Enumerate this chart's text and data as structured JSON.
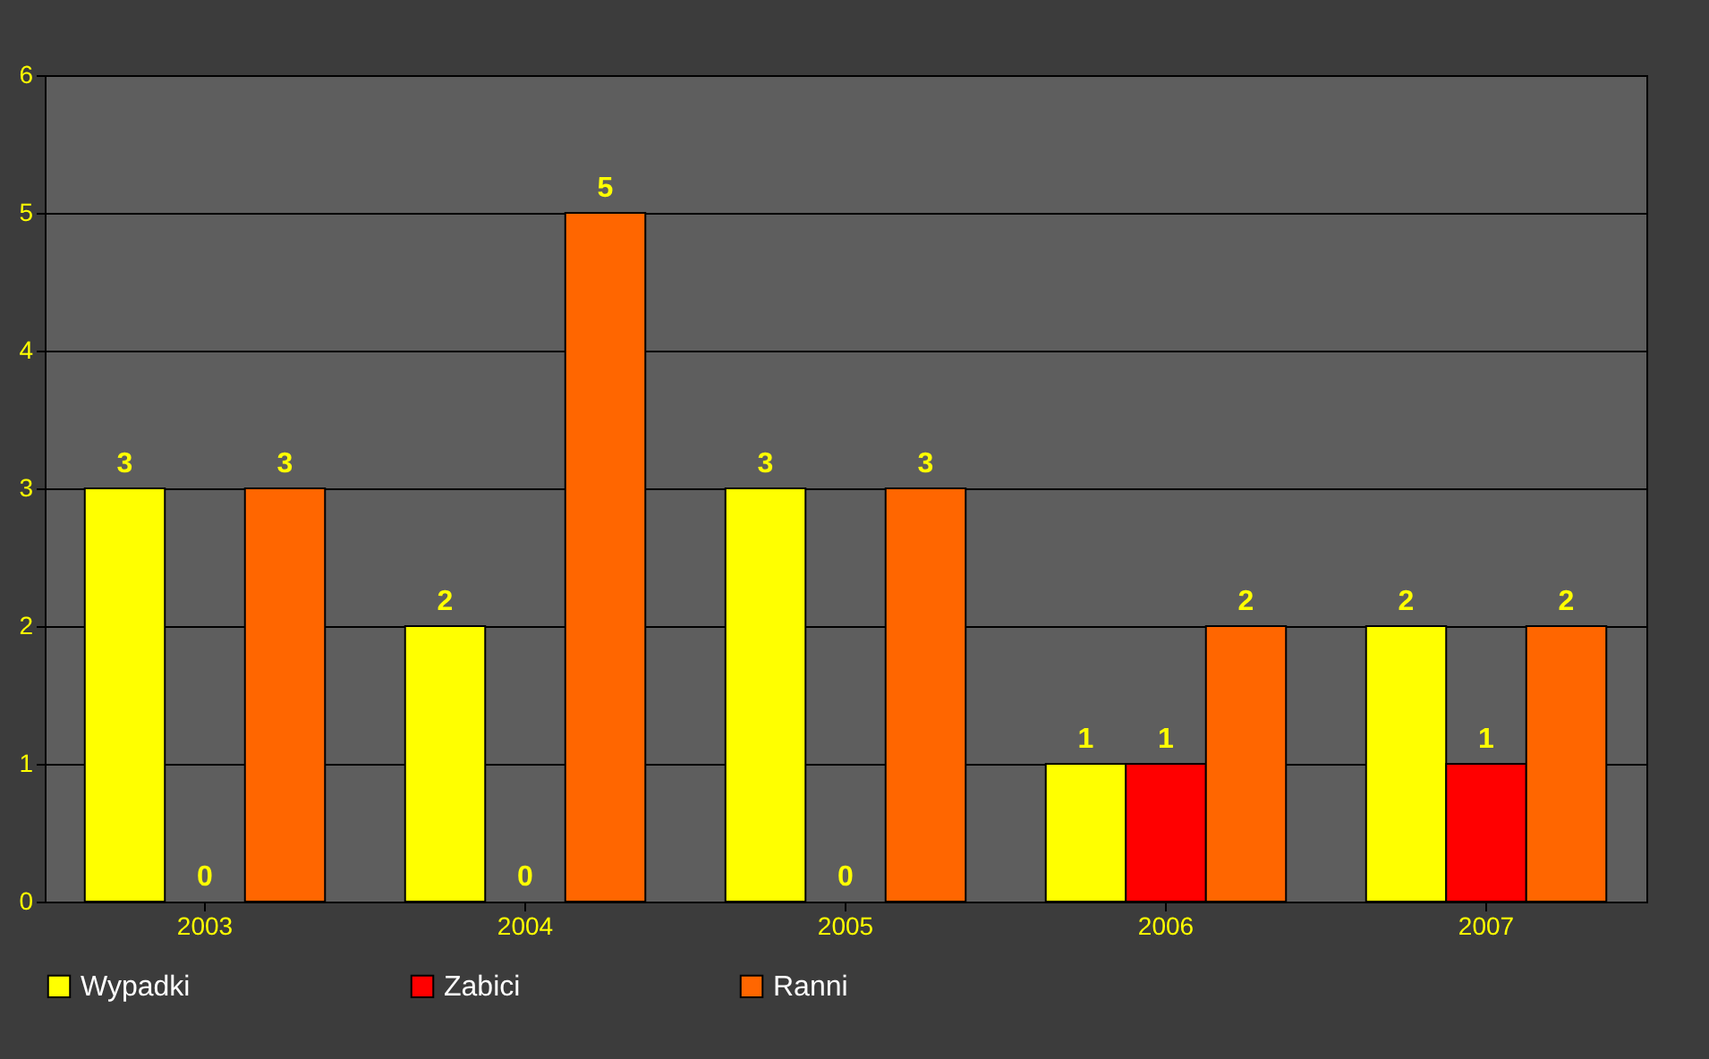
{
  "chart_data": {
    "type": "bar",
    "categories": [
      "2003",
      "2004",
      "2005",
      "2006",
      "2007"
    ],
    "series": [
      {
        "name": "Wypadki",
        "color": "#ffff00",
        "values": [
          3,
          2,
          3,
          1,
          2
        ]
      },
      {
        "name": "Zabici",
        "color": "#ff0000",
        "values": [
          0,
          0,
          0,
          1,
          1
        ]
      },
      {
        "name": "Ranni",
        "color": "#ff6600",
        "values": [
          3,
          5,
          3,
          2,
          2
        ]
      }
    ],
    "ylim": [
      0,
      6
    ],
    "yticks": [
      0,
      1,
      2,
      3,
      4,
      5,
      6
    ],
    "grid": "y",
    "legend": "bottom",
    "data_labels": true
  }
}
